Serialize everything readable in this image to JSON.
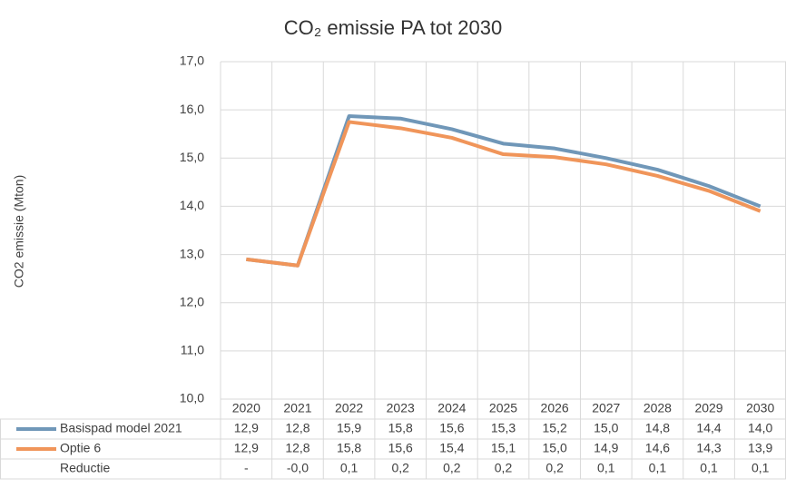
{
  "chart_data": {
    "type": "line",
    "title": "CO₂ emissie PA tot 2030",
    "y_label": "CO2 emissie (Mton)",
    "categories": [
      "2020",
      "2021",
      "2022",
      "2023",
      "2024",
      "2025",
      "2026",
      "2027",
      "2028",
      "2029",
      "2030"
    ],
    "ylim": [
      10,
      17
    ],
    "yticks": [
      {
        "value": 10,
        "label": "10,0"
      },
      {
        "value": 11,
        "label": "11,0"
      },
      {
        "value": 12,
        "label": "12,0"
      },
      {
        "value": 13,
        "label": "13,0"
      },
      {
        "value": 14,
        "label": "14,0"
      },
      {
        "value": 15,
        "label": "15,0"
      },
      {
        "value": 16,
        "label": "16,0"
      },
      {
        "value": 17,
        "label": "17,0"
      }
    ],
    "grid": true,
    "series": [
      {
        "name": "Basispad model 2021",
        "color": "#7097b8",
        "values": [
          12.9,
          12.77,
          15.87,
          15.82,
          15.6,
          15.3,
          15.2,
          15.0,
          14.76,
          14.42,
          14.0
        ],
        "value_labels": [
          "12,9",
          "12,8",
          "15,9",
          "15,8",
          "15,6",
          "15,3",
          "15,2",
          "15,0",
          "14,8",
          "14,4",
          "14,0"
        ]
      },
      {
        "name": "Optie 6",
        "color": "#f0955a",
        "values": [
          12.9,
          12.77,
          15.75,
          15.62,
          15.42,
          15.08,
          15.02,
          14.87,
          14.63,
          14.32,
          13.9
        ],
        "value_labels": [
          "12,9",
          "12,8",
          "15,8",
          "15,6",
          "15,4",
          "15,1",
          "15,0",
          "14,9",
          "14,6",
          "14,3",
          "13,9"
        ]
      }
    ],
    "table_rows": [
      {
        "name": "Reductie",
        "values": [
          0,
          0,
          0.12,
          0.2,
          0.18,
          0.22,
          0.18,
          0.13,
          0.13,
          0.1,
          0.1
        ],
        "value_labels": [
          "-",
          "-0,0",
          "0,1",
          "0,2",
          "0,2",
          "0,2",
          "0,2",
          "0,1",
          "0,1",
          "0,1",
          "0,1"
        ]
      }
    ]
  }
}
